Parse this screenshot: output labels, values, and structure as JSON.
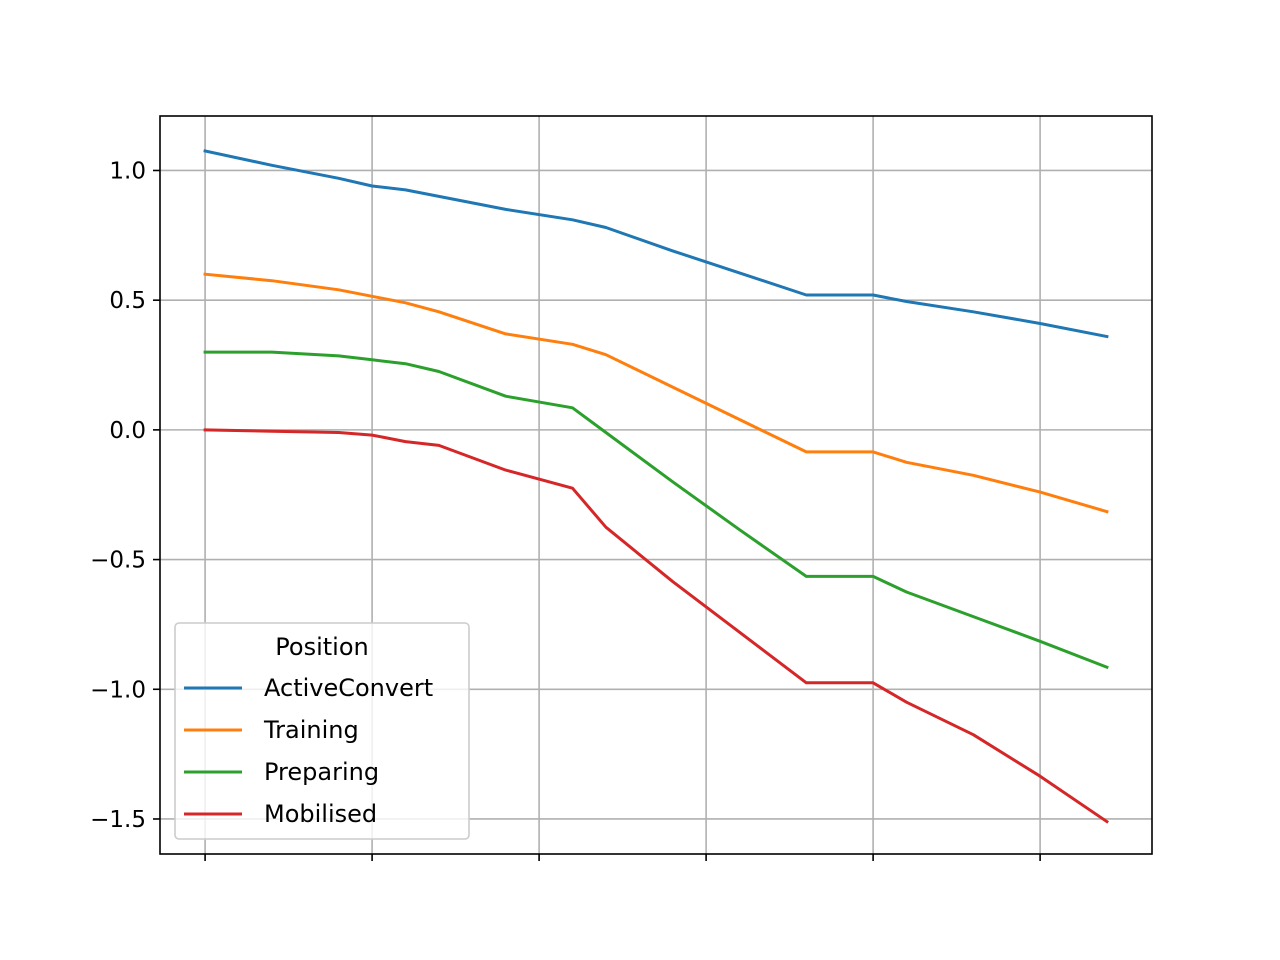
{
  "chart_data": {
    "type": "line",
    "title": "",
    "xlabel": "",
    "ylabel": "",
    "x": [
      0,
      0.4,
      0.8,
      1.0,
      1.2,
      1.4,
      1.8,
      2.2,
      2.4,
      2.8,
      3.2,
      3.6,
      4.0,
      4.2,
      4.6,
      5.0,
      5.4
    ],
    "xlim": [
      -0.27,
      5.67
    ],
    "ylim": [
      -1.635,
      1.21
    ],
    "xticks": [
      0,
      1,
      2,
      3,
      4,
      5
    ],
    "yticks": [
      1.0,
      0.5,
      0.0,
      -0.5,
      -1.0,
      -1.5
    ],
    "ytick_labels": [
      "1.0",
      "0.5",
      "0.0",
      "−0.5",
      "−1.0",
      "−1.5"
    ],
    "grid": true,
    "legend": {
      "title": "Position",
      "placement": "lower-left"
    },
    "series": [
      {
        "name": "ActiveConvert",
        "color": "#1f77b4",
        "values": [
          1.075,
          1.02,
          0.97,
          0.94,
          0.925,
          0.9,
          0.85,
          0.81,
          0.78,
          0.69,
          0.605,
          0.52,
          0.52,
          0.495,
          0.455,
          0.41,
          0.36
        ]
      },
      {
        "name": "Training",
        "color": "#ff7f0e",
        "values": [
          0.6,
          0.575,
          0.54,
          0.515,
          0.49,
          0.455,
          0.37,
          0.33,
          0.29,
          0.165,
          0.04,
          -0.085,
          -0.085,
          -0.125,
          -0.175,
          -0.24,
          -0.315
        ]
      },
      {
        "name": "Preparing",
        "color": "#2ca02c",
        "values": [
          0.3,
          0.3,
          0.285,
          0.27,
          0.255,
          0.225,
          0.13,
          0.085,
          -0.01,
          -0.2,
          -0.385,
          -0.565,
          -0.565,
          -0.625,
          -0.72,
          -0.815,
          -0.915
        ]
      },
      {
        "name": "Mobilised",
        "color": "#d62728",
        "values": [
          0.0,
          -0.005,
          -0.01,
          -0.02,
          -0.045,
          -0.06,
          -0.155,
          -0.225,
          -0.375,
          -0.585,
          -0.78,
          -0.975,
          -0.975,
          -1.05,
          -1.175,
          -1.335,
          -1.51
        ]
      }
    ]
  }
}
